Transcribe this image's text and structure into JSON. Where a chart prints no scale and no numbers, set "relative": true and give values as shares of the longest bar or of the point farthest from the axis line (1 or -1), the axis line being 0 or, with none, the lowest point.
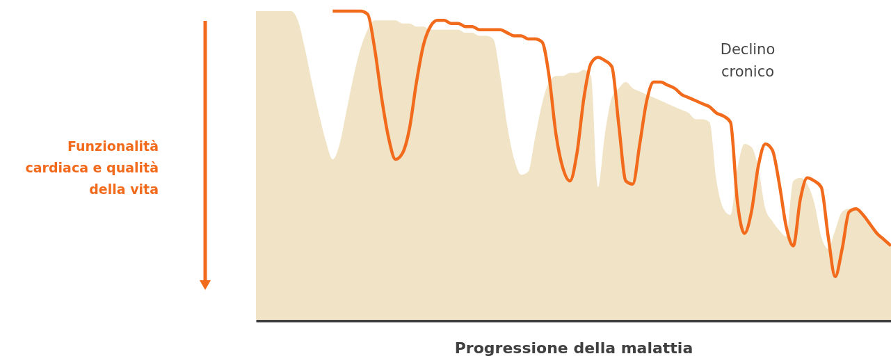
{
  "chart_data": {
    "type": "line",
    "relative": true,
    "xlabel": "Progressione della malattia",
    "annotations": [
      "Funzionalità cardiaca e qualità della vita",
      "Declino cronico"
    ],
    "categories": [
      null,
      null,
      null,
      null,
      null,
      null,
      null,
      null,
      null,
      null,
      null,
      null,
      null,
      null,
      null,
      null,
      null,
      null,
      null,
      null,
      null,
      null,
      null,
      null,
      null,
      null,
      null,
      null,
      null,
      null,
      null,
      null,
      null,
      null,
      null,
      null,
      null,
      null,
      null,
      null,
      null,
      null,
      null,
      null,
      null,
      null,
      null,
      null,
      null,
      null,
      null,
      null,
      null,
      null,
      null,
      null,
      null,
      null,
      null,
      null,
      null,
      null,
      null,
      null,
      null,
      null,
      null,
      null,
      null,
      null,
      null,
      null,
      null,
      null,
      null,
      null,
      null,
      null,
      null,
      null,
      null,
      null,
      null,
      null,
      null,
      null,
      null,
      null,
      null,
      null,
      null,
      null
    ],
    "series": [
      {
        "type": "area",
        "color": "#f1e4c6",
        "values": [
          1.0,
          1.0,
          1.0,
          1.0,
          1.0,
          1.0,
          0.97,
          0.88,
          0.77,
          0.67,
          0.58,
          0.52,
          0.57,
          0.68,
          0.79,
          0.88,
          0.94,
          0.97,
          0.97,
          0.97,
          0.97,
          0.96,
          0.96,
          0.95,
          0.95,
          0.94,
          0.94,
          0.94,
          0.94,
          0.94,
          0.93,
          0.93,
          0.92,
          0.92,
          0.91,
          0.79,
          0.63,
          0.52,
          0.47,
          0.48,
          0.59,
          0.7,
          0.77,
          0.79,
          0.79,
          0.8,
          0.8,
          0.81,
          0.79,
          0.43,
          0.6,
          0.72,
          0.75,
          0.77,
          0.75,
          0.74,
          0.73,
          0.72,
          0.71,
          0.7,
          0.69,
          0.68,
          0.67,
          0.65,
          0.65,
          0.64,
          0.45,
          0.36,
          0.34,
          0.49,
          0.57,
          0.56,
          0.49,
          0.36,
          0.32,
          0.29,
          0.27,
          0.45,
          0.46,
          0.44,
          0.38,
          0.27,
          0.23,
          0.29,
          0.35,
          0.36,
          0.36,
          0.34,
          0.32,
          0.28,
          0.26,
          0.24
        ]
      },
      {
        "color": "#f26b1d",
        "values": [
          null,
          null,
          null,
          null,
          null,
          null,
          null,
          null,
          null,
          null,
          null,
          1.0,
          1.0,
          1.0,
          1.0,
          1.0,
          0.99,
          0.88,
          0.72,
          0.59,
          0.52,
          0.54,
          0.62,
          0.77,
          0.89,
          0.95,
          0.97,
          0.97,
          0.96,
          0.96,
          0.95,
          0.95,
          0.94,
          0.94,
          0.94,
          0.94,
          0.93,
          0.92,
          0.92,
          0.91,
          0.91,
          0.9,
          0.79,
          0.6,
          0.49,
          0.45,
          0.54,
          0.72,
          0.83,
          0.85,
          0.84,
          0.82,
          0.63,
          0.45,
          0.44,
          0.57,
          0.71,
          0.77,
          0.77,
          0.76,
          0.75,
          0.73,
          0.72,
          0.71,
          0.7,
          0.69,
          0.67,
          0.66,
          0.64,
          0.38,
          0.28,
          0.35,
          0.5,
          0.57,
          0.55,
          0.44,
          0.3,
          0.24,
          0.39,
          0.46,
          0.45,
          0.43,
          0.27,
          0.14,
          0.23,
          0.35,
          0.36,
          0.34,
          0.31,
          0.28,
          0.26,
          0.24
        ]
      }
    ]
  }
}
